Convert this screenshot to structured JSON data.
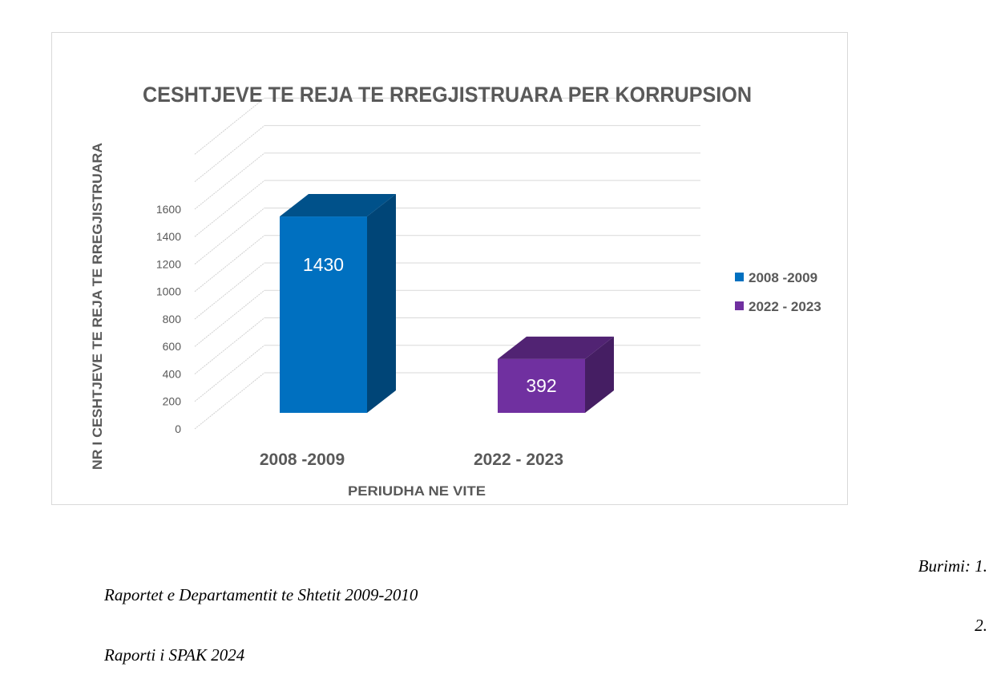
{
  "chart_data": {
    "type": "bar",
    "style": "3d-column",
    "title": "CESHTJEVE TE REJA TE RREGJISTRUARA PER KORRUPSION",
    "xlabel": "PERIUDHA NE VITE",
    "ylabel": "NR I CESHTJEVE TE REJA TE RREGJISTRUARA",
    "categories": [
      "2008 -2009",
      "2022 - 2023"
    ],
    "series": [
      {
        "name": "2008 -2009",
        "color": "#0070c0",
        "values": [
          1430,
          null
        ]
      },
      {
        "name": "2022 - 2023",
        "color": "#7030a0",
        "values": [
          null,
          392
        ]
      }
    ],
    "data_labels": [
      "1430",
      "392"
    ],
    "yticks": [
      0,
      200,
      400,
      600,
      800,
      1000,
      1200,
      1400,
      1600
    ],
    "ytick_labels": [
      "0",
      "200",
      "400",
      "600",
      "800",
      "1000",
      "1200",
      "1400",
      "1600"
    ],
    "ylim": [
      0,
      1600
    ],
    "grid": true,
    "legend_position": "right"
  },
  "sources": {
    "label": "Burimi: 1.",
    "item1": "Raportet e Departamentit  te Shtetit 2009-2010",
    "num2": "2.",
    "item2": "Raporti i SPAK 2024"
  }
}
